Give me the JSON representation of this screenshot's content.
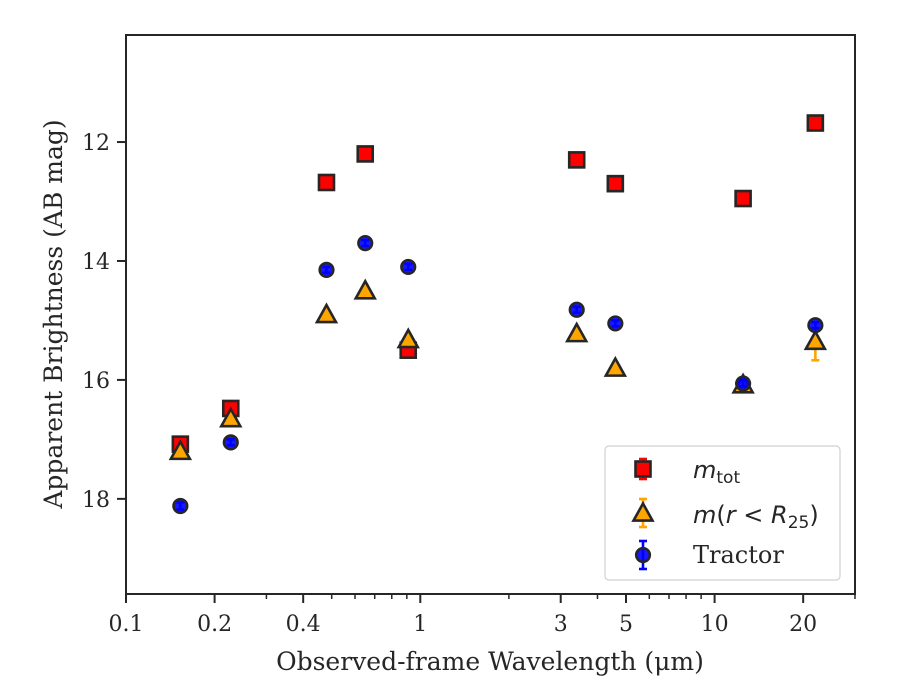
{
  "chart_data": {
    "type": "scatter",
    "title": "",
    "xlabel": "Observed-frame Wavelength (μm)",
    "ylabel": "Apparent Brightness (AB mag)",
    "xscale": "log",
    "xlim": [
      0.1,
      30
    ],
    "ylim": [
      19.6,
      10.2
    ],
    "y_inverted": true,
    "x_ticks": [
      {
        "value": 0.1,
        "label": "0.1"
      },
      {
        "value": 0.2,
        "label": "0.2"
      },
      {
        "value": 0.4,
        "label": "0.4"
      },
      {
        "value": 1,
        "label": "1"
      },
      {
        "value": 3,
        "label": "3"
      },
      {
        "value": 5,
        "label": "5"
      },
      {
        "value": 10,
        "label": "10"
      },
      {
        "value": 20,
        "label": "20"
      }
    ],
    "y_ticks": [
      {
        "value": 12,
        "label": "12"
      },
      {
        "value": 14,
        "label": "14"
      },
      {
        "value": 16,
        "label": "16"
      },
      {
        "value": 18,
        "label": "18"
      }
    ],
    "legend_position": "bottom-right",
    "grid": false,
    "series": [
      {
        "name": "m_tot",
        "marker": "square",
        "color": "#ff0000",
        "edge_color": "#262626",
        "error_color": "#ff0000",
        "points": [
          {
            "x": 0.153,
            "y": 17.08,
            "err": 0.05
          },
          {
            "x": 0.227,
            "y": 16.48,
            "err": 0.04
          },
          {
            "x": 0.48,
            "y": 12.68,
            "err": 0.02
          },
          {
            "x": 0.65,
            "y": 12.2,
            "err": 0.02
          },
          {
            "x": 0.91,
            "y": 15.5,
            "err": 0.02
          },
          {
            "x": 3.4,
            "y": 12.3,
            "err": 0.02
          },
          {
            "x": 4.6,
            "y": 12.7,
            "err": 0.02
          },
          {
            "x": 12.5,
            "y": 12.95,
            "err": 0.02
          },
          {
            "x": 22,
            "y": 11.68,
            "err": 0.03
          }
        ]
      },
      {
        "name": "m(r<R25)",
        "marker": "triangle",
        "color": "#ffa500",
        "edge_color": "#262626",
        "error_color": "#ffa500",
        "points": [
          {
            "x": 0.153,
            "y": 17.2,
            "err": 0.04
          },
          {
            "x": 0.227,
            "y": 16.65,
            "err": 0.04
          },
          {
            "x": 0.48,
            "y": 14.9,
            "err": 0.02
          },
          {
            "x": 0.65,
            "y": 14.5,
            "err": 0.02
          },
          {
            "x": 0.91,
            "y": 15.32,
            "err": 0.02
          },
          {
            "x": 3.4,
            "y": 15.22,
            "err": 0.02
          },
          {
            "x": 4.6,
            "y": 15.8,
            "err": 0.02
          },
          {
            "x": 12.5,
            "y": 16.08,
            "err": 0.03
          },
          {
            "x": 22,
            "y": 15.35,
            "err": 0.32
          }
        ]
      },
      {
        "name": "Tractor",
        "marker": "circle",
        "color": "#0000ff",
        "edge_color": "#262626",
        "error_color": "#0000ff",
        "points": [
          {
            "x": 0.153,
            "y": 18.12,
            "err": 0.06
          },
          {
            "x": 0.227,
            "y": 17.05,
            "err": 0.05
          },
          {
            "x": 0.48,
            "y": 14.15,
            "err": 0.05
          },
          {
            "x": 0.65,
            "y": 13.7,
            "err": 0.05
          },
          {
            "x": 0.91,
            "y": 14.1,
            "err": 0.05
          },
          {
            "x": 3.4,
            "y": 14.82,
            "err": 0.05
          },
          {
            "x": 4.6,
            "y": 15.05,
            "err": 0.05
          },
          {
            "x": 12.5,
            "y": 16.06,
            "err": 0.05
          },
          {
            "x": 22,
            "y": 15.08,
            "err": 0.05
          }
        ]
      }
    ]
  }
}
